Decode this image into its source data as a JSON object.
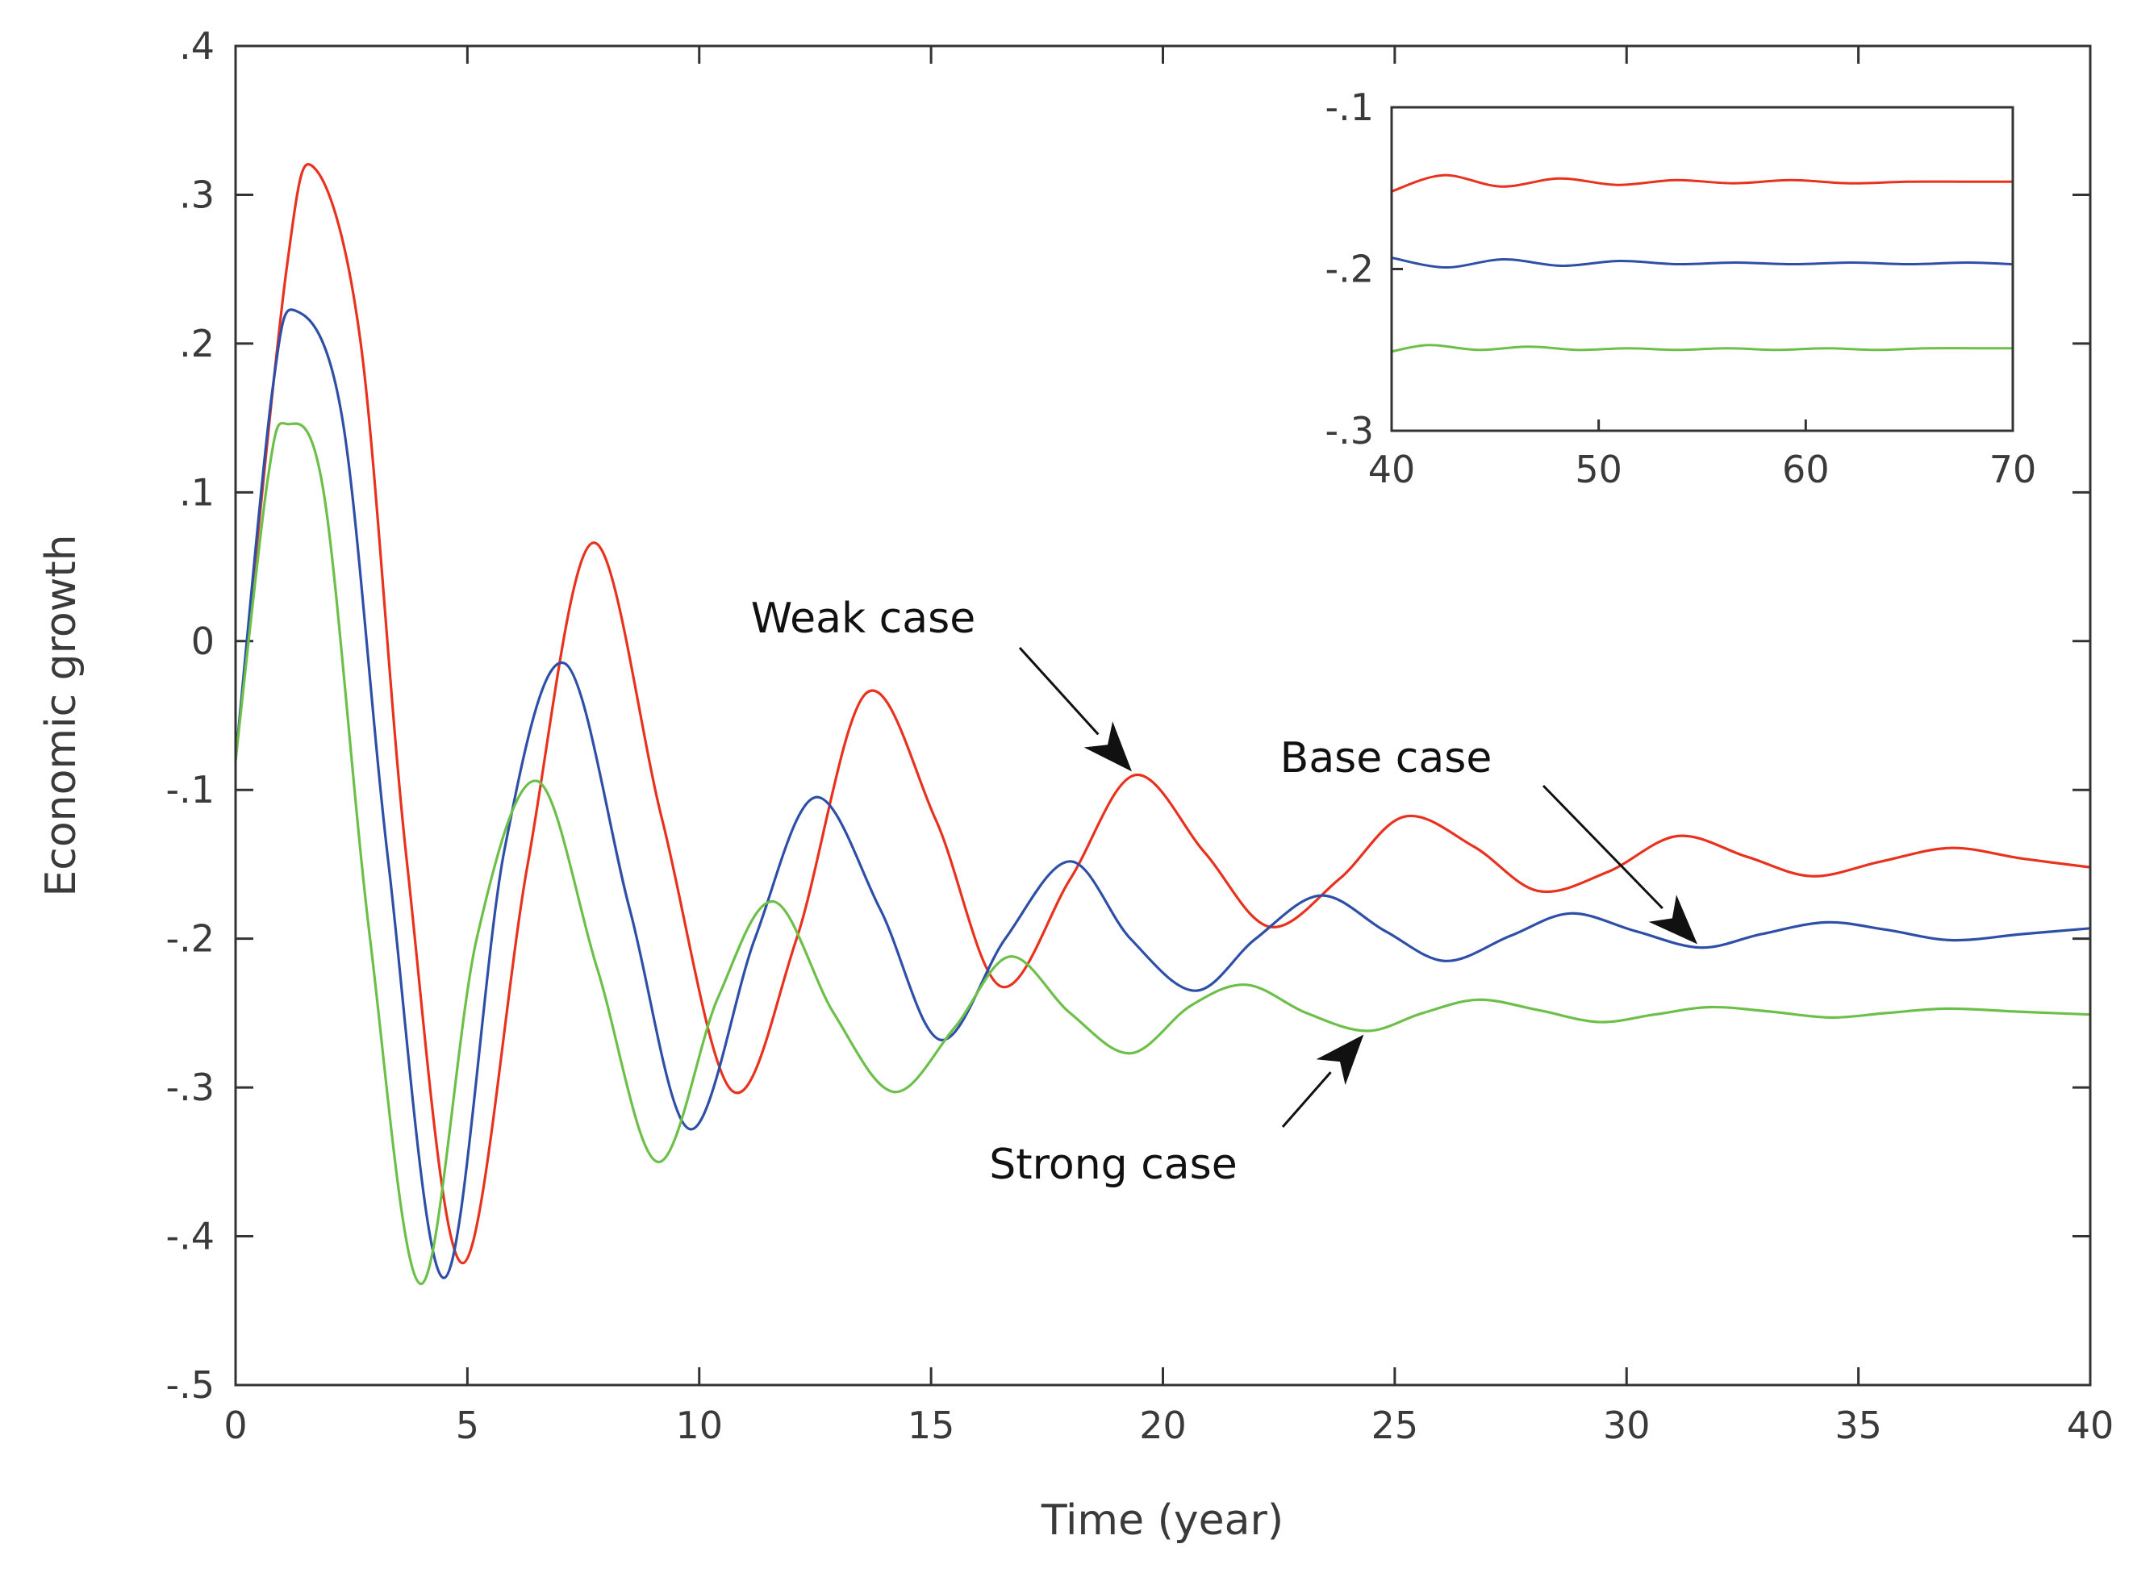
{
  "chart_data": [
    {
      "type": "line",
      "title": "",
      "xlabel": "Time (year)",
      "ylabel": "Economic growth",
      "xlim": [
        0,
        40
      ],
      "ylim": [
        -0.5,
        0.4
      ],
      "xticks": [
        0,
        5,
        10,
        15,
        20,
        25,
        30,
        35,
        40
      ],
      "yticks": [
        -0.5,
        -0.4,
        -0.3,
        -0.2,
        -0.1,
        0,
        0.1,
        0.2,
        0.3,
        0.4
      ],
      "grid": false,
      "series": [
        {
          "name": "Weak case",
          "color": "#e8321e",
          "x": [
            0,
            1.1,
            1.7,
            2.7,
            3.7,
            4.9,
            6.3,
            7.7,
            9.2,
            10.7,
            12.1,
            13.6,
            15.1,
            16.5,
            18.0,
            19.4,
            20.9,
            22.3,
            23.8,
            25.2,
            26.7,
            28.1,
            29.6,
            31.1,
            32.6,
            34.0,
            35.5,
            37.0,
            38.5,
            40
          ],
          "y": [
            -0.08,
            0.25,
            0.318,
            0.2,
            -0.15,
            -0.418,
            -0.15,
            0.066,
            -0.12,
            -0.302,
            -0.2,
            -0.035,
            -0.12,
            -0.232,
            -0.16,
            -0.09,
            -0.142,
            -0.192,
            -0.16,
            -0.118,
            -0.138,
            -0.168,
            -0.155,
            -0.131,
            -0.145,
            -0.158,
            -0.148,
            -0.139,
            -0.146,
            -0.152
          ]
        },
        {
          "name": "Base case",
          "color": "#2e4fa8",
          "x": [
            0,
            0.8,
            1.3,
            2.3,
            3.3,
            4.5,
            5.8,
            7.1,
            8.5,
            9.8,
            11.2,
            12.5,
            13.9,
            15.2,
            16.6,
            18.0,
            19.3,
            20.7,
            22.0,
            23.4,
            24.8,
            26.1,
            27.5,
            28.8,
            30.2,
            31.6,
            32.9,
            34.3,
            35.6,
            37.0,
            38.5,
            40
          ],
          "y": [
            -0.08,
            0.17,
            0.222,
            0.15,
            -0.15,
            -0.428,
            -0.14,
            -0.015,
            -0.18,
            -0.328,
            -0.2,
            -0.105,
            -0.18,
            -0.268,
            -0.2,
            -0.148,
            -0.2,
            -0.235,
            -0.2,
            -0.171,
            -0.195,
            -0.215,
            -0.198,
            -0.183,
            -0.195,
            -0.206,
            -0.197,
            -0.189,
            -0.194,
            -0.201,
            -0.197,
            -0.193
          ]
        },
        {
          "name": "Strong case",
          "color": "#6cc04a",
          "x": [
            0,
            0.7,
            1.1,
            1.9,
            2.9,
            4.0,
            5.2,
            6.5,
            7.8,
            9.1,
            10.4,
            11.6,
            12.9,
            14.2,
            15.5,
            16.7,
            18.0,
            19.3,
            20.6,
            21.8,
            23.1,
            24.4,
            25.6,
            26.8,
            28.1,
            29.4,
            30.6,
            31.8,
            33.1,
            34.4,
            35.6,
            36.9,
            38.4,
            40
          ],
          "y": [
            -0.08,
            0.11,
            0.146,
            0.1,
            -0.2,
            -0.432,
            -0.2,
            -0.094,
            -0.22,
            -0.35,
            -0.24,
            -0.175,
            -0.25,
            -0.303,
            -0.26,
            -0.212,
            -0.25,
            -0.277,
            -0.245,
            -0.231,
            -0.25,
            -0.262,
            -0.25,
            -0.241,
            -0.248,
            -0.256,
            -0.251,
            -0.246,
            -0.249,
            -0.253,
            -0.25,
            -0.247,
            -0.249,
            -0.251
          ]
        }
      ],
      "annotations": [
        {
          "text": "Weak case",
          "target": [
            19.4,
            -0.09
          ]
        },
        {
          "text": "Base case",
          "target": [
            31.6,
            -0.206
          ]
        },
        {
          "text": "Strong case",
          "target": [
            24.4,
            -0.262
          ]
        }
      ]
    },
    {
      "type": "line",
      "title": "",
      "xlabel": "",
      "ylabel": "",
      "xlim": [
        40,
        70
      ],
      "ylim": [
        -0.3,
        -0.1
      ],
      "xticks": [
        40,
        50,
        60,
        70
      ],
      "yticks": [
        -0.3,
        -0.2,
        -0.1
      ],
      "grid": false,
      "placement": "inset top-right",
      "series": [
        {
          "color": "#e8321e",
          "x": [
            40,
            42.5,
            45.3,
            48.1,
            50.9,
            53.7,
            56.5,
            59.3,
            62.1,
            64.9,
            67.7,
            70
          ],
          "y": [
            -0.152,
            -0.142,
            -0.149,
            -0.144,
            -0.148,
            -0.145,
            -0.147,
            -0.145,
            -0.147,
            -0.146,
            -0.146,
            -0.146
          ]
        },
        {
          "color": "#2e4fa8",
          "x": [
            40,
            42.6,
            45.4,
            48.2,
            51.0,
            53.8,
            56.6,
            59.4,
            62.2,
            65.0,
            67.8,
            70
          ],
          "y": [
            -0.193,
            -0.199,
            -0.194,
            -0.198,
            -0.195,
            -0.197,
            -0.196,
            -0.197,
            -0.196,
            -0.197,
            -0.196,
            -0.197
          ]
        },
        {
          "color": "#6cc04a",
          "x": [
            40,
            41.8,
            44.2,
            46.6,
            49.0,
            51.4,
            53.8,
            56.2,
            58.6,
            61.0,
            63.4,
            65.8,
            68.2,
            70
          ],
          "y": [
            -0.251,
            -0.247,
            -0.25,
            -0.248,
            -0.25,
            -0.249,
            -0.25,
            -0.249,
            -0.25,
            -0.249,
            -0.25,
            -0.249,
            -0.249,
            -0.249
          ]
        }
      ]
    }
  ]
}
